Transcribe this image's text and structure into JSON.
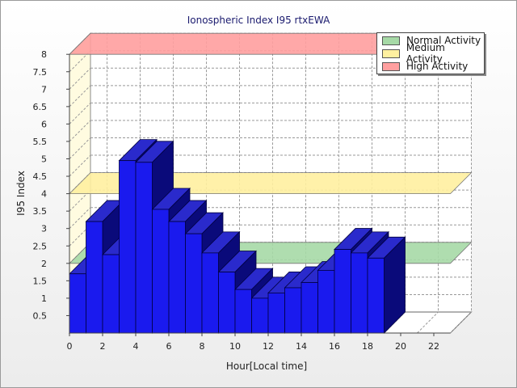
{
  "chart_data": {
    "type": "bar",
    "title": "Ionospheric Index I95 rtxEWA",
    "xlabel": "Hour[Local time]",
    "ylabel": "I95 Index",
    "x": [
      0,
      1,
      2,
      3,
      4,
      5,
      6,
      7,
      8,
      9,
      10,
      11,
      12,
      13,
      14,
      15,
      16,
      17,
      18
    ],
    "values": [
      1.7,
      3.2,
      2.25,
      4.95,
      4.9,
      3.55,
      3.2,
      2.85,
      2.3,
      1.75,
      1.25,
      1.0,
      1.15,
      1.3,
      1.45,
      1.8,
      2.4,
      2.3,
      2.15
    ],
    "x_ticks": [
      "0",
      "2",
      "4",
      "6",
      "8",
      "10",
      "12",
      "14",
      "16",
      "18",
      "20",
      "22"
    ],
    "y_ticks": [
      "0.5",
      "1",
      "1.5",
      "2",
      "2.5",
      "3",
      "3.5",
      "4",
      "4.5",
      "5",
      "5.5",
      "6",
      "6.5",
      "7",
      "7.5",
      "8"
    ],
    "ylim": [
      0,
      8
    ],
    "xlim": [
      0,
      23
    ],
    "grid": true,
    "bar_color": "#1a1aee",
    "bands": [
      {
        "name": "Normal Activity",
        "value": 2,
        "color": "#a6d9a6"
      },
      {
        "name": "Medium Activity",
        "value": 4,
        "color": "#fff0a0"
      },
      {
        "name": "High Activity",
        "value": 8,
        "color": "#ff9f9f"
      }
    ],
    "legend_position": "top-right"
  }
}
